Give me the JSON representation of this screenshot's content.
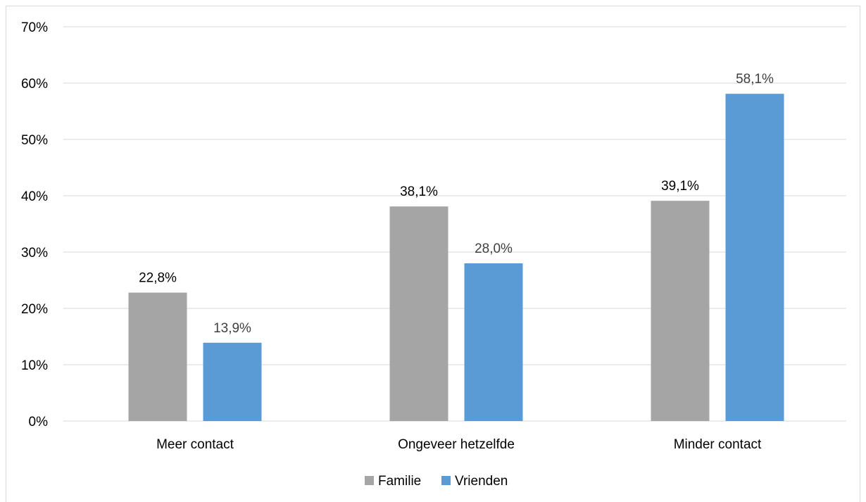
{
  "chart_data": {
    "type": "bar",
    "title": "",
    "xlabel": "",
    "ylabel": "",
    "categories": [
      "Meer contact",
      "Ongeveer hetzelfde",
      "Minder contact"
    ],
    "series": [
      {
        "name": "Familie",
        "color": "#a5a5a5",
        "label_color": "#000000",
        "values": [
          22.8,
          38.1,
          39.1
        ],
        "labels": [
          "22,8%",
          "38,1%",
          "39,1%"
        ]
      },
      {
        "name": "Vrienden",
        "color": "#5b9bd5",
        "label_color": "#404040",
        "values": [
          13.9,
          28.0,
          58.1
        ],
        "labels": [
          "13,9%",
          "28,0%",
          "58,1%"
        ]
      }
    ],
    "ylim": [
      0,
      70
    ],
    "y_ticks": [
      0,
      10,
      20,
      30,
      40,
      50,
      60,
      70
    ],
    "y_tick_labels": [
      "0%",
      "10%",
      "20%",
      "30%",
      "40%",
      "50%",
      "60%",
      "70%"
    ],
    "grid": true,
    "gridline_color": "#d9d9d9",
    "legend_position": "bottom"
  }
}
